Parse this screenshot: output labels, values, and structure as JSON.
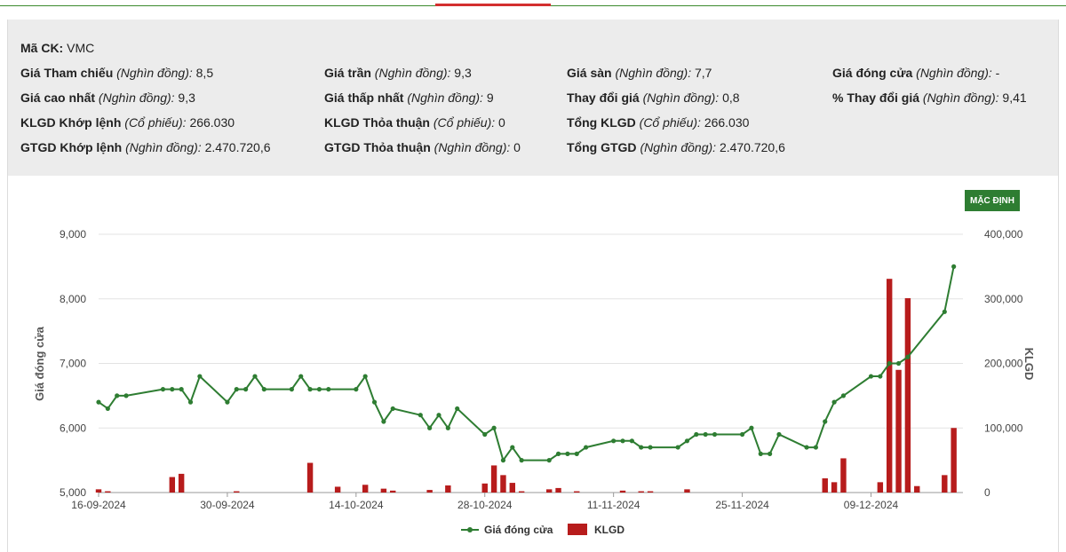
{
  "info": {
    "symbol_label": "Mã CK:",
    "symbol_value": "VMC",
    "rows": [
      [
        {
          "label": "Giá Tham chiếu",
          "unit": "(Nghìn đồng):",
          "value": "8,5"
        },
        {
          "label": "Giá trần",
          "unit": "(Nghìn đồng):",
          "value": "9,3"
        },
        {
          "label": "Giá sàn",
          "unit": "(Nghìn đồng):",
          "value": "7,7"
        },
        {
          "label": "Giá đóng cửa",
          "unit": "(Nghìn đồng):",
          "value": "-"
        }
      ],
      [
        {
          "label": "Giá cao nhất",
          "unit": "(Nghìn đồng):",
          "value": "9,3"
        },
        {
          "label": "Giá thấp nhất",
          "unit": "(Nghìn đồng):",
          "value": "9"
        },
        {
          "label": "Thay đổi giá",
          "unit": "(Nghìn đồng):",
          "value": "0,8"
        },
        {
          "label": "% Thay đổi giá",
          "unit": "(Nghìn đồng):",
          "value": "9,41"
        }
      ],
      [
        {
          "label": "KLGD Khớp lệnh",
          "unit": "(Cổ phiếu):",
          "value": "266.030"
        },
        {
          "label": "KLGD Thỏa thuận",
          "unit": "(Cổ phiếu):",
          "value": "0"
        },
        {
          "label": "Tổng KLGD",
          "unit": "(Cổ phiếu):",
          "value": "266.030"
        }
      ],
      [
        {
          "label": "GTGD Khớp lệnh",
          "unit": "(Nghìn đồng):",
          "value": "2.470.720,6"
        },
        {
          "label": "GTGD Thỏa thuận",
          "unit": "(Nghìn đồng):",
          "value": "0"
        },
        {
          "label": "Tổng GTGD",
          "unit": "(Nghìn đồng):",
          "value": "2.470.720,6"
        }
      ]
    ]
  },
  "default_button_label": "MẶC ĐỊNH",
  "colors": {
    "price_line": "#2e7d32",
    "volume_bar": "#b71c1c",
    "grid": "#e3e3e3",
    "button": "#2e7d32"
  },
  "chart_data": {
    "type": "line",
    "ylabel_left": "Giá đóng cửa",
    "ylabel_right": "KLGD",
    "x_start": "2024-09-16",
    "x_end": "2024-12-19",
    "x_ticks": [
      {
        "date": "2024-09-16",
        "label": "16-09-2024"
      },
      {
        "date": "2024-09-30",
        "label": "30-09-2024"
      },
      {
        "date": "2024-10-14",
        "label": "14-10-2024"
      },
      {
        "date": "2024-10-28",
        "label": "28-10-2024"
      },
      {
        "date": "2024-11-11",
        "label": "11-11-2024"
      },
      {
        "date": "2024-11-25",
        "label": "25-11-2024"
      },
      {
        "date": "2024-12-09",
        "label": "09-12-2024"
      }
    ],
    "ylim_left": [
      5000,
      9000
    ],
    "yticks_left": [
      {
        "v": 5000,
        "label": "5,000"
      },
      {
        "v": 6000,
        "label": "6,000"
      },
      {
        "v": 7000,
        "label": "7,000"
      },
      {
        "v": 8000,
        "label": "8,000"
      },
      {
        "v": 9000,
        "label": "9,000"
      }
    ],
    "ylim_right": [
      0,
      400000
    ],
    "yticks_right": [
      {
        "v": 0,
        "label": "0"
      },
      {
        "v": 100000,
        "label": "100,000"
      },
      {
        "v": 200000,
        "label": "200,000"
      },
      {
        "v": 300000,
        "label": "300,000"
      },
      {
        "v": 400000,
        "label": "400,000"
      }
    ],
    "legend": {
      "price": "Giá đóng cửa",
      "volume": "KLGD"
    },
    "series": [
      {
        "name": "Giá đóng cửa",
        "type": "line",
        "points": [
          [
            "2024-09-16",
            6400
          ],
          [
            "2024-09-17",
            6300
          ],
          [
            "2024-09-18",
            6500
          ],
          [
            "2024-09-19",
            6500
          ],
          [
            "2024-09-23",
            6600
          ],
          [
            "2024-09-24",
            6600
          ],
          [
            "2024-09-25",
            6600
          ],
          [
            "2024-09-26",
            6400
          ],
          [
            "2024-09-27",
            6800
          ],
          [
            "2024-09-30",
            6400
          ],
          [
            "2024-10-01",
            6600
          ],
          [
            "2024-10-02",
            6600
          ],
          [
            "2024-10-03",
            6800
          ],
          [
            "2024-10-04",
            6600
          ],
          [
            "2024-10-07",
            6600
          ],
          [
            "2024-10-08",
            6800
          ],
          [
            "2024-10-09",
            6600
          ],
          [
            "2024-10-10",
            6600
          ],
          [
            "2024-10-11",
            6600
          ],
          [
            "2024-10-14",
            6600
          ],
          [
            "2024-10-15",
            6800
          ],
          [
            "2024-10-16",
            6400
          ],
          [
            "2024-10-17",
            6100
          ],
          [
            "2024-10-18",
            6300
          ],
          [
            "2024-10-21",
            6200
          ],
          [
            "2024-10-22",
            6000
          ],
          [
            "2024-10-23",
            6200
          ],
          [
            "2024-10-24",
            6000
          ],
          [
            "2024-10-25",
            6300
          ],
          [
            "2024-10-28",
            5900
          ],
          [
            "2024-10-29",
            6000
          ],
          [
            "2024-10-30",
            5500
          ],
          [
            "2024-10-31",
            5700
          ],
          [
            "2024-11-01",
            5500
          ],
          [
            "2024-11-04",
            5500
          ],
          [
            "2024-11-05",
            5600
          ],
          [
            "2024-11-06",
            5600
          ],
          [
            "2024-11-07",
            5600
          ],
          [
            "2024-11-08",
            5700
          ],
          [
            "2024-11-11",
            5800
          ],
          [
            "2024-11-12",
            5800
          ],
          [
            "2024-11-13",
            5800
          ],
          [
            "2024-11-14",
            5700
          ],
          [
            "2024-11-15",
            5700
          ],
          [
            "2024-11-18",
            5700
          ],
          [
            "2024-11-19",
            5800
          ],
          [
            "2024-11-20",
            5900
          ],
          [
            "2024-11-21",
            5900
          ],
          [
            "2024-11-22",
            5900
          ],
          [
            "2024-11-25",
            5900
          ],
          [
            "2024-11-26",
            6000
          ],
          [
            "2024-11-27",
            5600
          ],
          [
            "2024-11-28",
            5600
          ],
          [
            "2024-11-29",
            5900
          ],
          [
            "2024-12-02",
            5700
          ],
          [
            "2024-12-03",
            5700
          ],
          [
            "2024-12-04",
            6100
          ],
          [
            "2024-12-05",
            6400
          ],
          [
            "2024-12-06",
            6500
          ],
          [
            "2024-12-09",
            6800
          ],
          [
            "2024-12-10",
            6800
          ],
          [
            "2024-12-11",
            7000
          ],
          [
            "2024-12-12",
            7000
          ],
          [
            "2024-12-13",
            7100
          ],
          [
            "2024-12-17",
            7800
          ],
          [
            "2024-12-18",
            8500
          ]
        ]
      },
      {
        "name": "KLGD",
        "type": "bar",
        "points": [
          [
            "2024-09-16",
            5000
          ],
          [
            "2024-09-17",
            2000
          ],
          [
            "2024-09-24",
            24000
          ],
          [
            "2024-09-25",
            29000
          ],
          [
            "2024-10-01",
            2000
          ],
          [
            "2024-10-09",
            46000
          ],
          [
            "2024-10-12",
            9000
          ],
          [
            "2024-10-15",
            12000
          ],
          [
            "2024-10-17",
            6000
          ],
          [
            "2024-10-18",
            3000
          ],
          [
            "2024-10-22",
            4000
          ],
          [
            "2024-10-24",
            11000
          ],
          [
            "2024-10-28",
            14000
          ],
          [
            "2024-10-29",
            42000
          ],
          [
            "2024-10-30",
            27000
          ],
          [
            "2024-10-31",
            15000
          ],
          [
            "2024-11-01",
            2000
          ],
          [
            "2024-11-04",
            5000
          ],
          [
            "2024-11-05",
            7000
          ],
          [
            "2024-11-07",
            2000
          ],
          [
            "2024-11-12",
            3000
          ],
          [
            "2024-11-14",
            2000
          ],
          [
            "2024-11-15",
            2000
          ],
          [
            "2024-11-19",
            5000
          ],
          [
            "2024-12-04",
            22000
          ],
          [
            "2024-12-05",
            16000
          ],
          [
            "2024-12-06",
            53000
          ],
          [
            "2024-12-10",
            16000
          ],
          [
            "2024-12-11",
            331000
          ],
          [
            "2024-12-12",
            190000
          ],
          [
            "2024-12-13",
            301000
          ],
          [
            "2024-12-14",
            10000
          ],
          [
            "2024-12-17",
            27000
          ],
          [
            "2024-12-18",
            100000
          ]
        ]
      }
    ]
  }
}
